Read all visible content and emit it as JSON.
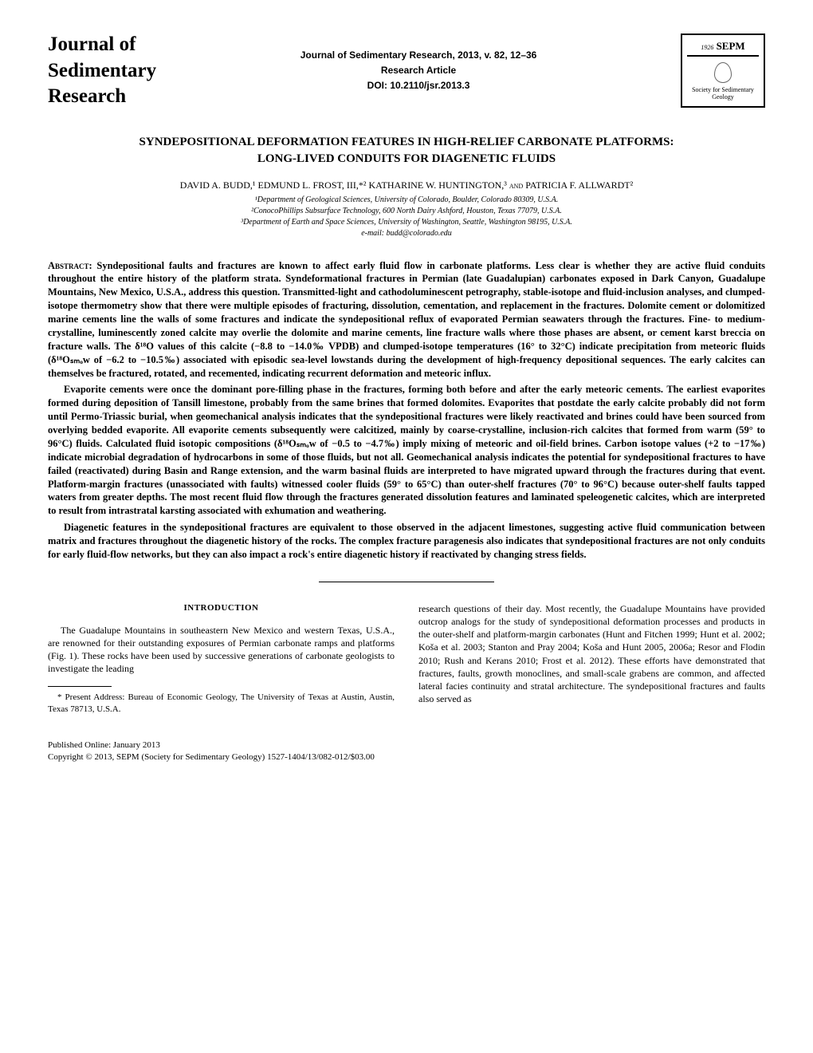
{
  "header": {
    "journal_logo_line1": "Journal of",
    "journal_logo_line2": "Sedimentary",
    "journal_logo_line3": "Research",
    "citation": "Journal of Sedimentary Research, 2013, v. 82, 12–36",
    "article_type": "Research Article",
    "doi": "DOI: 10.2110/jsr.2013.3",
    "sepm_year": "1926",
    "sepm_name": "SEPM",
    "sepm_sub": "Society for Sedimentary Geology"
  },
  "title_line1": "SYNDEPOSITIONAL DEFORMATION FEATURES IN HIGH-RELIEF CARBONATE PLATFORMS:",
  "title_line2": "LONG-LIVED CONDUITS FOR DIAGENETIC FLUIDS",
  "authors_html": "DAVID A. BUDD,¹ EDMUND L. FROST, III,*² KATHARINE W. HUNTINGTON,³ ",
  "authors_and": "and",
  "authors_last": " PATRICIA F. ALLWARDT²",
  "affiliations": {
    "a1": "¹Department of Geological Sciences, University of Colorado, Boulder, Colorado 80309, U.S.A.",
    "a2": "²ConocoPhillips Subsurface Technology, 600 North Dairy Ashford, Houston, Texas 77079, U.S.A.",
    "a3": "³Department of Earth and Space Sciences, University of Washington, Seattle, Washington 98195, U.S.A.",
    "email": "e-mail: budd@colorado.edu"
  },
  "abstract": {
    "label": "Abstract: ",
    "p1": "Syndepositional faults and fractures are known to affect early fluid flow in carbonate platforms. Less clear is whether they are active fluid conduits throughout the entire history of the platform strata. Syndeformational fractures in Permian (late Guadalupian) carbonates exposed in Dark Canyon, Guadalupe Mountains, New Mexico, U.S.A., address this question. Transmitted-light and cathodoluminescent petrography, stable-isotope and fluid-inclusion analyses, and clumped-isotope thermometry show that there were multiple episodes of fracturing, dissolution, cementation, and replacement in the fractures. Dolomite cement or dolomitized marine cements line the walls of some fractures and indicate the syndepositional reflux of evaporated Permian seawaters through the fractures. Fine- to medium-crystalline, luminescently zoned calcite may overlie the dolomite and marine cements, line fracture walls where those phases are absent, or cement karst breccia on fracture walls. The δ¹⁸O values of this calcite (−8.8 to −14.0‰ VPDB) and clumped-isotope temperatures (16° to 32°C) indicate precipitation from meteoric fluids (δ¹⁸Oₛₘₒw of −6.2 to −10.5‰) associated with episodic sea-level lowstands during the development of high-frequency depositional sequences. The early calcites can themselves be fractured, rotated, and recemented, indicating recurrent deformation and meteoric influx.",
    "p2": "Evaporite cements were once the dominant pore-filling phase in the fractures, forming both before and after the early meteoric cements. The earliest evaporites formed during deposition of Tansill limestone, probably from the same brines that formed dolomites. Evaporites that postdate the early calcite probably did not form until Permo-Triassic burial, when geomechanical analysis indicates that the syndepositional fractures were likely reactivated and brines could have been sourced from overlying bedded evaporite. All evaporite cements subsequently were calcitized, mainly by coarse-crystalline, inclusion-rich calcites that formed from warm (59° to 96°C) fluids. Calculated fluid isotopic compositions (δ¹⁸Oₛₘₒw of −0.5 to −4.7‰) imply mixing of meteoric and oil-field brines. Carbon isotope values (+2 to −17‰) indicate microbial degradation of hydrocarbons in some of those fluids, but not all. Geomechanical analysis indicates the potential for syndepositional fractures to have failed (reactivated) during Basin and Range extension, and the warm basinal fluids are interpreted to have migrated upward through the fractures during that event. Platform-margin fractures (unassociated with faults) witnessed cooler fluids (59° to 65°C) than outer-shelf fractures (70° to 96°C) because outer-shelf faults tapped waters from greater depths. The most recent fluid flow through the fractures generated dissolution features and laminated speleogenetic calcites, which are interpreted to result from intrastratal karsting associated with exhumation and weathering.",
    "p3": "Diagenetic features in the syndepositional fractures are equivalent to those observed in the adjacent limestones, suggesting active fluid communication between matrix and fractures throughout the diagenetic history of the rocks. The complex fracture paragenesis also indicates that syndepositional fractures are not only conduits for early fluid-flow networks, but they can also impact a rock's entire diagenetic history if reactivated by changing stress fields."
  },
  "body": {
    "intro_heading": "INTRODUCTION",
    "col1_p1": "The Guadalupe Mountains in southeastern New Mexico and western Texas, U.S.A., are renowned for their outstanding exposures of Permian carbonate ramps and platforms (Fig. 1). These rocks have been used by successive generations of carbonate geologists to investigate the leading",
    "footnote": "* Present Address: Bureau of Economic Geology, The University of Texas at Austin, Austin, Texas 78713, U.S.A.",
    "col2_p1": "research questions of their day. Most recently, the Guadalupe Mountains have provided outcrop analogs for the study of syndepositional deformation processes and products in the outer-shelf and platform-margin carbonates (Hunt and Fitchen 1999; Hunt et al. 2002; Koša et al. 2003; Stanton and Pray 2004; Koša and Hunt 2005, 2006a; Resor and Flodin 2010; Rush and Kerans 2010; Frost et al. 2012). These efforts have demonstrated that fractures, faults, growth monoclines, and small-scale grabens are common, and affected lateral facies continuity and stratal architecture. The syndepositional fractures and faults also served as"
  },
  "footer": {
    "published": "Published Online: January 2013",
    "copyright": "Copyright © 2013, SEPM (Society for Sedimentary Geology)    1527-1404/13/082-012/$03.00"
  }
}
